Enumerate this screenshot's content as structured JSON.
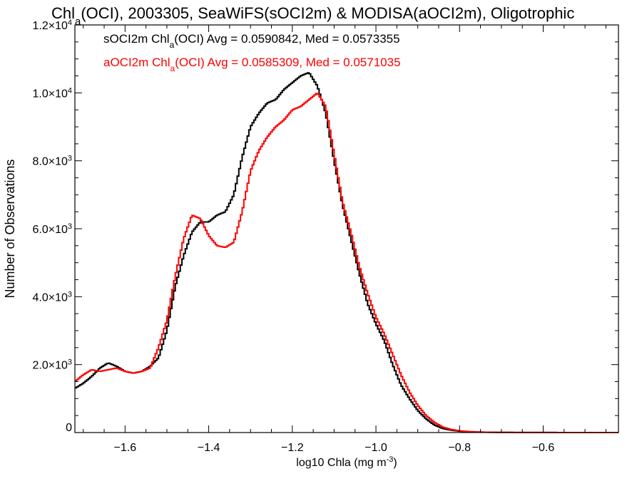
{
  "chart_data": {
    "type": "line",
    "title": {
      "pre": "Chl",
      "sub": "a",
      "post": "(OCI), 2003305, SeaWiFS(sOCI2m) & MODISA(aOCI2m), Oligotrophic"
    },
    "xlabel": {
      "pre": "log10 Chla (mg m",
      "sup": "-3",
      "post": ")"
    },
    "ylabel": "Number of Observations",
    "xlim": [
      -1.72,
      -0.42
    ],
    "ylim": [
      0,
      12000
    ],
    "x_ticks": [
      -1.6,
      -1.4,
      -1.2,
      -1.0,
      -0.8,
      -0.6
    ],
    "x_tick_labels": [
      "−1.6",
      "−1.4",
      "−1.2",
      "−1.0",
      "−0.8",
      "−0.6"
    ],
    "y_ticks": [
      0,
      2000,
      4000,
      6000,
      8000,
      10000,
      12000
    ],
    "y_tick_labels": [
      {
        "plain": "0"
      },
      {
        "mant": "2.0×10",
        "exp": "3"
      },
      {
        "mant": "4.0×10",
        "exp": "3"
      },
      {
        "mant": "6.0×10",
        "exp": "3"
      },
      {
        "mant": "8.0×10",
        "exp": "3"
      },
      {
        "mant": "1.0×10",
        "exp": "4"
      },
      {
        "mant": "1.2×10",
        "exp": "4"
      }
    ],
    "grid": false,
    "legend_placement": "top-left",
    "series": [
      {
        "name": "sOCI2m",
        "color": "#000000",
        "label": {
          "pre": "sOCI2m Chl",
          "sub": "a",
          "post": "(OCI) Avg = 0.0590842, Med = 0.0573355"
        },
        "x": [
          -1.72,
          -1.7,
          -1.68,
          -1.66,
          -1.64,
          -1.62,
          -1.6,
          -1.58,
          -1.56,
          -1.54,
          -1.52,
          -1.5,
          -1.48,
          -1.46,
          -1.44,
          -1.42,
          -1.4,
          -1.38,
          -1.36,
          -1.34,
          -1.32,
          -1.3,
          -1.28,
          -1.26,
          -1.24,
          -1.22,
          -1.2,
          -1.18,
          -1.16,
          -1.14,
          -1.12,
          -1.1,
          -1.08,
          -1.06,
          -1.04,
          -1.02,
          -1.0,
          -0.98,
          -0.96,
          -0.94,
          -0.92,
          -0.9,
          -0.88,
          -0.86,
          -0.84,
          -0.82,
          -0.8,
          -0.78,
          -0.76,
          -0.74,
          -0.72,
          -0.7,
          -0.65,
          -0.6,
          -0.55,
          -0.5,
          -0.45,
          -0.42
        ],
        "y": [
          1300,
          1450,
          1650,
          1900,
          2050,
          1950,
          1800,
          1750,
          1800,
          1950,
          2200,
          3000,
          4300,
          5200,
          5900,
          6200,
          6200,
          6400,
          6500,
          7000,
          8100,
          9000,
          9400,
          9700,
          9800,
          10100,
          10300,
          10500,
          10600,
          10200,
          9400,
          8000,
          6700,
          5700,
          4700,
          3800,
          3200,
          2700,
          2000,
          1400,
          1000,
          650,
          400,
          220,
          120,
          70,
          40,
          25,
          15,
          10,
          8,
          5,
          3,
          2,
          1,
          1,
          0,
          0
        ]
      },
      {
        "name": "aOCI2m",
        "color": "#ff0000",
        "label": {
          "pre": "aOCI2m Chl",
          "sub": "a",
          "post": "(OCI) Avg = 0.0585309, Med = 0.0571035"
        },
        "x": [
          -1.72,
          -1.7,
          -1.68,
          -1.66,
          -1.64,
          -1.62,
          -1.6,
          -1.58,
          -1.56,
          -1.54,
          -1.52,
          -1.5,
          -1.48,
          -1.46,
          -1.44,
          -1.42,
          -1.4,
          -1.38,
          -1.36,
          -1.34,
          -1.32,
          -1.3,
          -1.28,
          -1.26,
          -1.24,
          -1.22,
          -1.2,
          -1.18,
          -1.16,
          -1.14,
          -1.12,
          -1.1,
          -1.08,
          -1.06,
          -1.04,
          -1.02,
          -1.0,
          -0.98,
          -0.96,
          -0.94,
          -0.92,
          -0.9,
          -0.88,
          -0.86,
          -0.84,
          -0.82,
          -0.8,
          -0.78,
          -0.76,
          -0.74,
          -0.72,
          -0.7,
          -0.65,
          -0.6,
          -0.55,
          -0.5,
          -0.45,
          -0.42
        ],
        "y": [
          1500,
          1700,
          1850,
          1800,
          1850,
          1900,
          1800,
          1750,
          1800,
          1900,
          2500,
          3300,
          4600,
          5700,
          6400,
          6300,
          5800,
          5500,
          5450,
          5600,
          6500,
          7700,
          8300,
          8700,
          9000,
          9200,
          9500,
          9600,
          9800,
          10000,
          9600,
          8200,
          6800,
          5900,
          4900,
          4100,
          3400,
          2900,
          2300,
          1700,
          1200,
          800,
          500,
          300,
          160,
          90,
          50,
          30,
          20,
          12,
          8,
          5,
          3,
          2,
          1,
          1,
          0,
          0
        ]
      }
    ]
  }
}
